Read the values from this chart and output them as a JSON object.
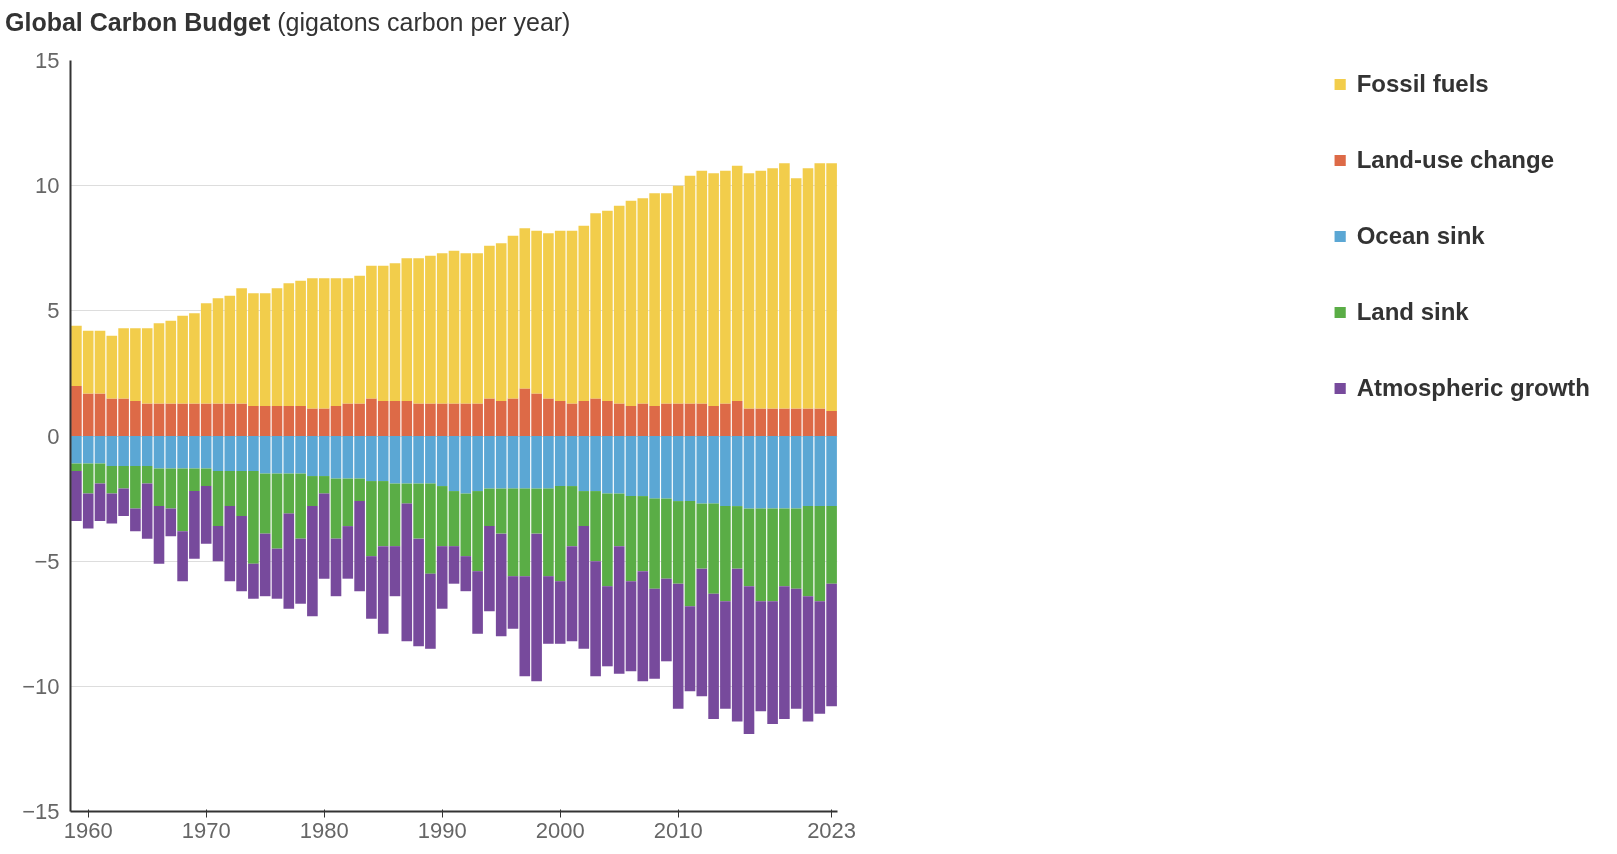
{
  "chart_data": {
    "type": "bar",
    "title": "Global Carbon Budget",
    "subtitle": "(gigatons carbon per year)",
    "stacked": true,
    "grid": "y",
    "legend": "right",
    "xlim": [
      1958.5,
      2023.5
    ],
    "xticks": [
      1960,
      1970,
      1980,
      1990,
      2000,
      2010,
      2023
    ],
    "ylim": [
      -15,
      15
    ],
    "yticks": [
      -15,
      -10,
      -5,
      0,
      5,
      10,
      15
    ],
    "x": [
      1959,
      1960,
      1961,
      1962,
      1963,
      1964,
      1965,
      1966,
      1967,
      1968,
      1969,
      1970,
      1971,
      1972,
      1973,
      1974,
      1975,
      1976,
      1977,
      1978,
      1979,
      1980,
      1981,
      1982,
      1983,
      1984,
      1985,
      1986,
      1987,
      1988,
      1989,
      1990,
      1991,
      1992,
      1993,
      1994,
      1995,
      1996,
      1997,
      1998,
      1999,
      2000,
      2001,
      2002,
      2003,
      2004,
      2005,
      2006,
      2007,
      2008,
      2009,
      2010,
      2011,
      2012,
      2013,
      2014,
      2015,
      2016,
      2017,
      2018,
      2019,
      2020,
      2021,
      2022,
      2023
    ],
    "series": [
      {
        "name": "Land-use change",
        "color": "#dd6a47",
        "values": [
          2.0,
          1.7,
          1.7,
          1.5,
          1.5,
          1.4,
          1.3,
          1.3,
          1.3,
          1.3,
          1.3,
          1.3,
          1.3,
          1.3,
          1.3,
          1.2,
          1.2,
          1.2,
          1.2,
          1.2,
          1.1,
          1.1,
          1.2,
          1.3,
          1.3,
          1.5,
          1.4,
          1.4,
          1.4,
          1.3,
          1.3,
          1.3,
          1.3,
          1.3,
          1.3,
          1.5,
          1.4,
          1.5,
          1.9,
          1.7,
          1.5,
          1.4,
          1.3,
          1.4,
          1.5,
          1.4,
          1.3,
          1.2,
          1.3,
          1.2,
          1.3,
          1.3,
          1.3,
          1.3,
          1.2,
          1.3,
          1.4,
          1.1,
          1.1,
          1.1,
          1.1,
          1.1,
          1.1,
          1.1,
          1.0
        ]
      },
      {
        "name": "Fossil fuels",
        "color": "#f2cd4b",
        "values": [
          2.4,
          2.5,
          2.5,
          2.5,
          2.8,
          2.9,
          3.0,
          3.2,
          3.3,
          3.5,
          3.6,
          4.0,
          4.2,
          4.3,
          4.6,
          4.5,
          4.5,
          4.7,
          4.9,
          5.0,
          5.2,
          5.2,
          5.1,
          5.0,
          5.1,
          5.3,
          5.4,
          5.5,
          5.7,
          5.8,
          5.9,
          6.0,
          6.1,
          6.0,
          6.0,
          6.1,
          6.3,
          6.5,
          6.4,
          6.5,
          6.6,
          6.8,
          6.9,
          7.0,
          7.4,
          7.6,
          7.9,
          8.2,
          8.2,
          8.5,
          8.4,
          8.7,
          9.1,
          9.3,
          9.3,
          9.3,
          9.4,
          9.4,
          9.5,
          9.6,
          9.8,
          9.2,
          9.6,
          9.8,
          9.9
        ]
      },
      {
        "name": "Ocean sink",
        "color": "#5ba7d4",
        "values": [
          -1.1,
          -1.1,
          -1.1,
          -1.2,
          -1.2,
          -1.2,
          -1.2,
          -1.3,
          -1.3,
          -1.3,
          -1.3,
          -1.3,
          -1.4,
          -1.4,
          -1.4,
          -1.4,
          -1.5,
          -1.5,
          -1.5,
          -1.5,
          -1.6,
          -1.6,
          -1.7,
          -1.7,
          -1.7,
          -1.8,
          -1.8,
          -1.9,
          -1.9,
          -1.9,
          -1.9,
          -2.0,
          -2.2,
          -2.3,
          -2.2,
          -2.1,
          -2.1,
          -2.1,
          -2.1,
          -2.1,
          -2.1,
          -2.0,
          -2.0,
          -2.2,
          -2.2,
          -2.3,
          -2.3,
          -2.4,
          -2.4,
          -2.5,
          -2.5,
          -2.6,
          -2.6,
          -2.7,
          -2.7,
          -2.8,
          -2.8,
          -2.9,
          -2.9,
          -2.9,
          -2.9,
          -2.9,
          -2.8,
          -2.8,
          -2.8
        ]
      },
      {
        "name": "Land sink",
        "color": "#5aad46",
        "values": [
          -0.3,
          -1.2,
          -0.8,
          -1.1,
          -0.9,
          -1.7,
          -0.7,
          -1.5,
          -1.6,
          -2.5,
          -0.9,
          -0.7,
          -2.2,
          -1.4,
          -1.8,
          -3.7,
          -2.4,
          -3.0,
          -1.6,
          -2.6,
          -1.2,
          -0.7,
          -2.4,
          -1.9,
          -0.9,
          -3.0,
          -2.6,
          -2.5,
          -0.8,
          -2.2,
          -3.6,
          -2.4,
          -2.2,
          -2.5,
          -3.2,
          -1.5,
          -1.8,
          -3.5,
          -3.5,
          -1.8,
          -3.5,
          -3.8,
          -2.4,
          -1.4,
          -2.8,
          -3.7,
          -2.1,
          -3.4,
          -3.0,
          -3.6,
          -3.2,
          -3.3,
          -4.2,
          -2.6,
          -3.6,
          -3.8,
          -2.5,
          -3.1,
          -3.7,
          -3.7,
          -3.1,
          -3.2,
          -3.6,
          -3.8,
          -3.1
        ]
      },
      {
        "name": "Atmospheric growth",
        "color": "#774a9c",
        "values": [
          -2.0,
          -1.4,
          -1.5,
          -1.2,
          -1.1,
          -0.9,
          -2.2,
          -2.3,
          -1.1,
          -2.0,
          -2.7,
          -2.3,
          -1.4,
          -3.0,
          -3.0,
          -1.4,
          -2.5,
          -2.0,
          -3.8,
          -2.6,
          -4.4,
          -3.4,
          -2.3,
          -2.1,
          -3.6,
          -2.5,
          -3.5,
          -2.0,
          -5.5,
          -4.3,
          -3.0,
          -2.5,
          -1.5,
          -1.4,
          -2.5,
          -3.4,
          -4.1,
          -2.1,
          -4.0,
          -5.9,
          -2.7,
          -2.5,
          -3.8,
          -4.9,
          -4.6,
          -3.2,
          -5.1,
          -3.6,
          -4.4,
          -3.6,
          -3.3,
          -5.0,
          -3.4,
          -5.1,
          -5.0,
          -4.3,
          -6.1,
          -5.9,
          -4.4,
          -4.9,
          -5.3,
          -4.8,
          -5.0,
          -4.5,
          -4.9
        ]
      }
    ]
  }
}
